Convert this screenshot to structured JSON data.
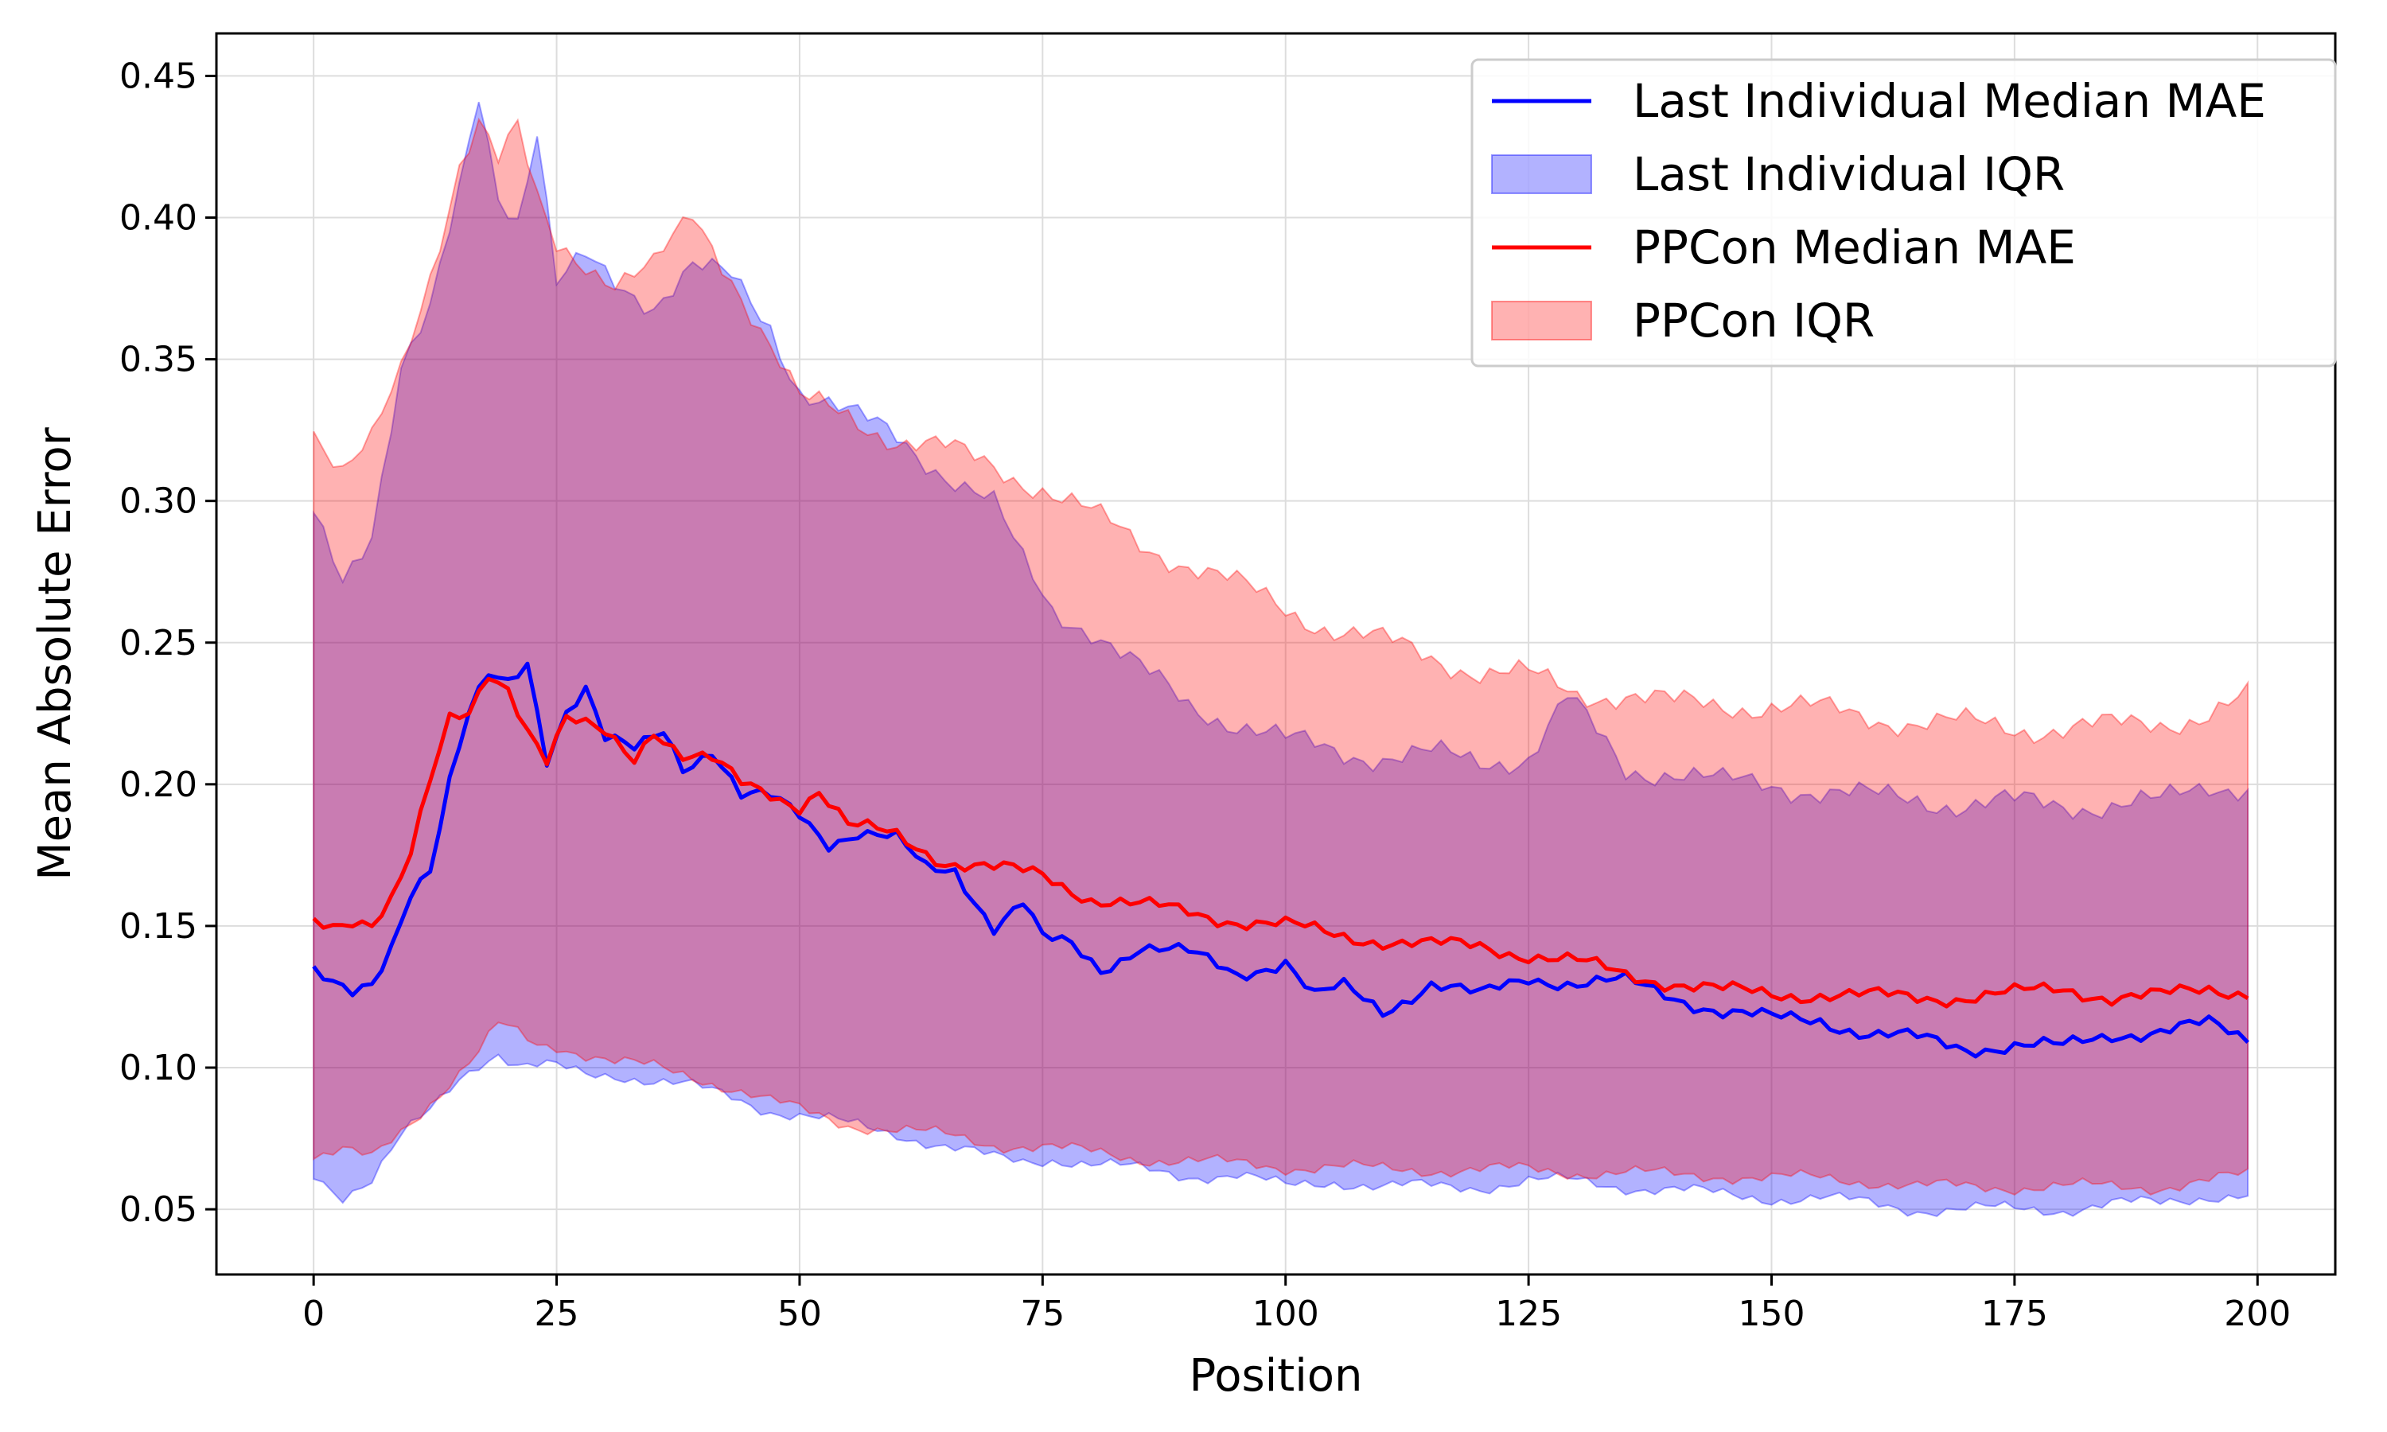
{
  "chart_data": {
    "type": "line",
    "xlabel": "Position",
    "ylabel": "Mean Absolute Error",
    "xlim": [
      -10,
      208
    ],
    "ylim": [
      0.027,
      0.465
    ],
    "xticks": [
      0,
      25,
      50,
      75,
      100,
      125,
      150,
      175,
      200
    ],
    "yticks": [
      0.05,
      0.1,
      0.15,
      0.2,
      0.25,
      0.3,
      0.35,
      0.4,
      0.45
    ],
    "xtick_labels": [
      "0",
      "25",
      "50",
      "75",
      "100",
      "125",
      "150",
      "175",
      "200"
    ],
    "ytick_labels": [
      "0.05",
      "0.10",
      "0.15",
      "0.20",
      "0.25",
      "0.30",
      "0.35",
      "0.40",
      "0.45"
    ],
    "grid": true,
    "legend_position": "top-right",
    "x_start": 0,
    "x_end": 199,
    "series": [
      {
        "name": "Last Individual Median MAE",
        "kind": "line",
        "color": "#0000ff",
        "knots_x": [
          0,
          2,
          4,
          6,
          8,
          10,
          12,
          14,
          16,
          18,
          20,
          22,
          24,
          26,
          28,
          30,
          33,
          36,
          38,
          41,
          44,
          47,
          50,
          53,
          56,
          60,
          63,
          66,
          70,
          73,
          75,
          78,
          81,
          85,
          90,
          95,
          100,
          103,
          106,
          110,
          115,
          120,
          125,
          130,
          135,
          140,
          145,
          150,
          155,
          160,
          165,
          170,
          175,
          180,
          185,
          190,
          195,
          199
        ],
        "knots_y": [
          0.133,
          0.128,
          0.126,
          0.13,
          0.144,
          0.163,
          0.17,
          0.2,
          0.224,
          0.238,
          0.236,
          0.244,
          0.21,
          0.226,
          0.233,
          0.215,
          0.212,
          0.22,
          0.207,
          0.212,
          0.195,
          0.195,
          0.19,
          0.18,
          0.183,
          0.18,
          0.17,
          0.17,
          0.15,
          0.158,
          0.145,
          0.143,
          0.135,
          0.143,
          0.14,
          0.133,
          0.138,
          0.125,
          0.128,
          0.12,
          0.13,
          0.125,
          0.132,
          0.13,
          0.13,
          0.125,
          0.12,
          0.117,
          0.117,
          0.112,
          0.11,
          0.107,
          0.108,
          0.107,
          0.112,
          0.113,
          0.115,
          0.11
        ]
      },
      {
        "name": "Last Individual IQR",
        "kind": "band",
        "color": "#0000ff",
        "knots_x": [
          0,
          3,
          6,
          9,
          12,
          15,
          17,
          19,
          21,
          23,
          25,
          28,
          31,
          35,
          39,
          43,
          47,
          50,
          55,
          60,
          65,
          70,
          73,
          76,
          80,
          85,
          90,
          95,
          100,
          105,
          110,
          115,
          120,
          125,
          129,
          135,
          140,
          145,
          150,
          155,
          160,
          165,
          170,
          175,
          180,
          185,
          190,
          195,
          199
        ],
        "lower_y": [
          0.063,
          0.055,
          0.06,
          0.075,
          0.085,
          0.097,
          0.102,
          0.105,
          0.1,
          0.1,
          0.1,
          0.098,
          0.098,
          0.095,
          0.093,
          0.09,
          0.085,
          0.083,
          0.08,
          0.077,
          0.072,
          0.068,
          0.067,
          0.068,
          0.066,
          0.064,
          0.062,
          0.062,
          0.058,
          0.06,
          0.058,
          0.058,
          0.058,
          0.06,
          0.06,
          0.058,
          0.057,
          0.055,
          0.054,
          0.054,
          0.052,
          0.05,
          0.05,
          0.05,
          0.05,
          0.052,
          0.052,
          0.055,
          0.055
        ],
        "upper_y": [
          0.296,
          0.275,
          0.29,
          0.345,
          0.365,
          0.41,
          0.445,
          0.41,
          0.4,
          0.43,
          0.375,
          0.385,
          0.378,
          0.37,
          0.382,
          0.378,
          0.362,
          0.34,
          0.33,
          0.323,
          0.31,
          0.298,
          0.278,
          0.262,
          0.255,
          0.24,
          0.228,
          0.222,
          0.215,
          0.212,
          0.21,
          0.21,
          0.208,
          0.21,
          0.23,
          0.205,
          0.205,
          0.2,
          0.2,
          0.198,
          0.195,
          0.195,
          0.193,
          0.193,
          0.193,
          0.193,
          0.193,
          0.2,
          0.2
        ]
      },
      {
        "name": "PPCon Median MAE",
        "kind": "line",
        "color": "#ff0000",
        "knots_x": [
          0,
          2,
          4,
          6,
          8,
          10,
          12,
          14,
          16,
          18,
          20,
          22,
          24,
          26,
          28,
          30,
          33,
          35,
          38,
          41,
          44,
          47,
          50,
          52,
          55,
          60,
          65,
          70,
          75,
          80,
          85,
          90,
          95,
          100,
          105,
          110,
          115,
          120,
          125,
          130,
          135,
          140,
          145,
          150,
          155,
          160,
          165,
          170,
          175,
          180,
          185,
          190,
          195,
          199
        ],
        "knots_y": [
          0.151,
          0.15,
          0.153,
          0.152,
          0.16,
          0.175,
          0.2,
          0.222,
          0.225,
          0.24,
          0.235,
          0.22,
          0.208,
          0.222,
          0.22,
          0.218,
          0.21,
          0.22,
          0.21,
          0.208,
          0.2,
          0.197,
          0.193,
          0.198,
          0.185,
          0.182,
          0.173,
          0.17,
          0.168,
          0.16,
          0.157,
          0.155,
          0.152,
          0.15,
          0.147,
          0.145,
          0.143,
          0.143,
          0.14,
          0.137,
          0.133,
          0.13,
          0.127,
          0.126,
          0.126,
          0.125,
          0.125,
          0.125,
          0.126,
          0.128,
          0.125,
          0.125,
          0.128,
          0.127
        ]
      },
      {
        "name": "PPCon IQR",
        "kind": "band",
        "color": "#ff0000",
        "knots_x": [
          0,
          3,
          6,
          9,
          12,
          15,
          17,
          19,
          21,
          23,
          25,
          28,
          31,
          35,
          39,
          43,
          47,
          50,
          55,
          60,
          65,
          70,
          75,
          80,
          85,
          90,
          95,
          100,
          105,
          110,
          115,
          120,
          125,
          130,
          135,
          140,
          145,
          150,
          155,
          160,
          165,
          170,
          175,
          180,
          185,
          190,
          195,
          199
        ],
        "lower_y": [
          0.068,
          0.07,
          0.068,
          0.078,
          0.088,
          0.098,
          0.105,
          0.115,
          0.112,
          0.108,
          0.108,
          0.105,
          0.102,
          0.1,
          0.097,
          0.093,
          0.088,
          0.085,
          0.08,
          0.078,
          0.076,
          0.073,
          0.072,
          0.07,
          0.068,
          0.067,
          0.066,
          0.065,
          0.065,
          0.064,
          0.064,
          0.064,
          0.064,
          0.063,
          0.063,
          0.062,
          0.062,
          0.061,
          0.061,
          0.06,
          0.058,
          0.058,
          0.058,
          0.058,
          0.058,
          0.058,
          0.06,
          0.062
        ],
        "upper_y": [
          0.326,
          0.31,
          0.32,
          0.345,
          0.38,
          0.42,
          0.435,
          0.42,
          0.43,
          0.405,
          0.39,
          0.385,
          0.378,
          0.382,
          0.4,
          0.38,
          0.355,
          0.335,
          0.33,
          0.322,
          0.318,
          0.312,
          0.305,
          0.295,
          0.285,
          0.278,
          0.27,
          0.262,
          0.255,
          0.25,
          0.245,
          0.24,
          0.238,
          0.232,
          0.232,
          0.228,
          0.228,
          0.228,
          0.226,
          0.224,
          0.222,
          0.221,
          0.22,
          0.22,
          0.22,
          0.222,
          0.225,
          0.23
        ]
      }
    ]
  },
  "legend": {
    "items": [
      {
        "label": "Last Individual Median MAE",
        "kind": "line",
        "color": "#0000ff"
      },
      {
        "label": "Last Individual IQR",
        "kind": "band",
        "color": "#0000ff"
      },
      {
        "label": "PPCon Median MAE",
        "kind": "line",
        "color": "#ff0000"
      },
      {
        "label": "PPCon IQR",
        "kind": "band",
        "color": "#ff0000"
      }
    ]
  }
}
